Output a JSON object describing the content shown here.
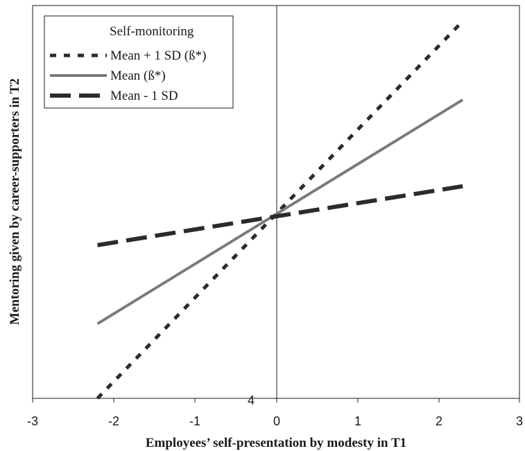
{
  "chart_data": {
    "type": "line",
    "xlabel": "Employees’ self-presentation by modesty in T1",
    "ylabel": "Mentoring given by career-supporters in T2",
    "xlim": [
      -3,
      3
    ],
    "x_ticks": [
      "-3",
      "-2",
      "-1",
      "0",
      "1",
      "2",
      "3"
    ],
    "y_tick_labels": [
      "4"
    ],
    "grid": false,
    "legend": {
      "title": "Self-monitoring",
      "placement": "top-left"
    },
    "series": [
      {
        "name": "Mean + 1 SD (ß*)",
        "style": "dotted",
        "color": "#2b2b2b",
        "x": [
          -2.2,
          2.3
        ],
        "y": [
          0.0,
          0.96
        ]
      },
      {
        "name": "Mean (ß*)",
        "style": "solid",
        "color": "#7a7a7a",
        "x": [
          -2.2,
          2.3
        ],
        "y": [
          0.19,
          0.76
        ]
      },
      {
        "name": "Mean - 1 SD",
        "style": "dashed",
        "color": "#2b2b2b",
        "x": [
          -2.2,
          2.3
        ],
        "y": [
          0.39,
          0.54
        ]
      }
    ]
  }
}
